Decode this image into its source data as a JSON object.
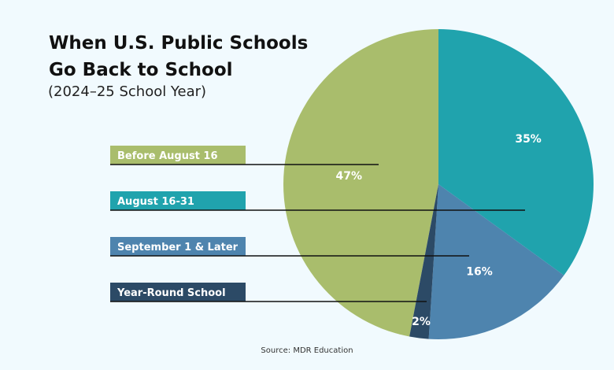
{
  "title": "When U.S. Public Schools Go Back to School",
  "subtitle": "(2024–25 School Year)",
  "source": "Source: MDR Education",
  "chart_data": {
    "type": "pie",
    "title": "When U.S. Public Schools Go Back to School",
    "subtitle": "(2024–25 School Year)",
    "slices": [
      {
        "label": "Before August 16",
        "value": 47,
        "data_label": "47%",
        "color": "#a9bd6c"
      },
      {
        "label": "August 16-31",
        "value": 35,
        "data_label": "35%",
        "color": "#20a3ad"
      },
      {
        "label": "September 1 & Later",
        "value": 16,
        "data_label": "16%",
        "color": "#4e84ae"
      },
      {
        "label": "Year-Round School",
        "value": 2,
        "data_label": "2%",
        "color": "#2c4a66"
      }
    ],
    "legend_placement": "left"
  }
}
